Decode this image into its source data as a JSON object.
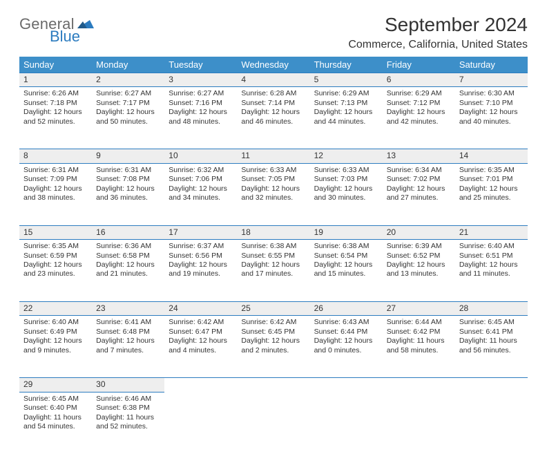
{
  "logo": {
    "general": "General",
    "blue": "Blue"
  },
  "header": {
    "month_title": "September 2024",
    "location": "Commerce, California, United States"
  },
  "colors": {
    "header_bg": "#3d8fc9",
    "header_text": "#ffffff",
    "daynum_bg": "#eeeeee",
    "rule": "#2b7bbf",
    "logo_gray": "#6b6b6b",
    "logo_blue": "#2b7bbf",
    "body_text": "#333333",
    "page_bg": "#ffffff"
  },
  "weekdays": [
    "Sunday",
    "Monday",
    "Tuesday",
    "Wednesday",
    "Thursday",
    "Friday",
    "Saturday"
  ],
  "weeks": [
    [
      {
        "day": "1",
        "sunrise": "Sunrise: 6:26 AM",
        "sunset": "Sunset: 7:18 PM",
        "daylight": "Daylight: 12 hours and 52 minutes."
      },
      {
        "day": "2",
        "sunrise": "Sunrise: 6:27 AM",
        "sunset": "Sunset: 7:17 PM",
        "daylight": "Daylight: 12 hours and 50 minutes."
      },
      {
        "day": "3",
        "sunrise": "Sunrise: 6:27 AM",
        "sunset": "Sunset: 7:16 PM",
        "daylight": "Daylight: 12 hours and 48 minutes."
      },
      {
        "day": "4",
        "sunrise": "Sunrise: 6:28 AM",
        "sunset": "Sunset: 7:14 PM",
        "daylight": "Daylight: 12 hours and 46 minutes."
      },
      {
        "day": "5",
        "sunrise": "Sunrise: 6:29 AM",
        "sunset": "Sunset: 7:13 PM",
        "daylight": "Daylight: 12 hours and 44 minutes."
      },
      {
        "day": "6",
        "sunrise": "Sunrise: 6:29 AM",
        "sunset": "Sunset: 7:12 PM",
        "daylight": "Daylight: 12 hours and 42 minutes."
      },
      {
        "day": "7",
        "sunrise": "Sunrise: 6:30 AM",
        "sunset": "Sunset: 7:10 PM",
        "daylight": "Daylight: 12 hours and 40 minutes."
      }
    ],
    [
      {
        "day": "8",
        "sunrise": "Sunrise: 6:31 AM",
        "sunset": "Sunset: 7:09 PM",
        "daylight": "Daylight: 12 hours and 38 minutes."
      },
      {
        "day": "9",
        "sunrise": "Sunrise: 6:31 AM",
        "sunset": "Sunset: 7:08 PM",
        "daylight": "Daylight: 12 hours and 36 minutes."
      },
      {
        "day": "10",
        "sunrise": "Sunrise: 6:32 AM",
        "sunset": "Sunset: 7:06 PM",
        "daylight": "Daylight: 12 hours and 34 minutes."
      },
      {
        "day": "11",
        "sunrise": "Sunrise: 6:33 AM",
        "sunset": "Sunset: 7:05 PM",
        "daylight": "Daylight: 12 hours and 32 minutes."
      },
      {
        "day": "12",
        "sunrise": "Sunrise: 6:33 AM",
        "sunset": "Sunset: 7:03 PM",
        "daylight": "Daylight: 12 hours and 30 minutes."
      },
      {
        "day": "13",
        "sunrise": "Sunrise: 6:34 AM",
        "sunset": "Sunset: 7:02 PM",
        "daylight": "Daylight: 12 hours and 27 minutes."
      },
      {
        "day": "14",
        "sunrise": "Sunrise: 6:35 AM",
        "sunset": "Sunset: 7:01 PM",
        "daylight": "Daylight: 12 hours and 25 minutes."
      }
    ],
    [
      {
        "day": "15",
        "sunrise": "Sunrise: 6:35 AM",
        "sunset": "Sunset: 6:59 PM",
        "daylight": "Daylight: 12 hours and 23 minutes."
      },
      {
        "day": "16",
        "sunrise": "Sunrise: 6:36 AM",
        "sunset": "Sunset: 6:58 PM",
        "daylight": "Daylight: 12 hours and 21 minutes."
      },
      {
        "day": "17",
        "sunrise": "Sunrise: 6:37 AM",
        "sunset": "Sunset: 6:56 PM",
        "daylight": "Daylight: 12 hours and 19 minutes."
      },
      {
        "day": "18",
        "sunrise": "Sunrise: 6:38 AM",
        "sunset": "Sunset: 6:55 PM",
        "daylight": "Daylight: 12 hours and 17 minutes."
      },
      {
        "day": "19",
        "sunrise": "Sunrise: 6:38 AM",
        "sunset": "Sunset: 6:54 PM",
        "daylight": "Daylight: 12 hours and 15 minutes."
      },
      {
        "day": "20",
        "sunrise": "Sunrise: 6:39 AM",
        "sunset": "Sunset: 6:52 PM",
        "daylight": "Daylight: 12 hours and 13 minutes."
      },
      {
        "day": "21",
        "sunrise": "Sunrise: 6:40 AM",
        "sunset": "Sunset: 6:51 PM",
        "daylight": "Daylight: 12 hours and 11 minutes."
      }
    ],
    [
      {
        "day": "22",
        "sunrise": "Sunrise: 6:40 AM",
        "sunset": "Sunset: 6:49 PM",
        "daylight": "Daylight: 12 hours and 9 minutes."
      },
      {
        "day": "23",
        "sunrise": "Sunrise: 6:41 AM",
        "sunset": "Sunset: 6:48 PM",
        "daylight": "Daylight: 12 hours and 7 minutes."
      },
      {
        "day": "24",
        "sunrise": "Sunrise: 6:42 AM",
        "sunset": "Sunset: 6:47 PM",
        "daylight": "Daylight: 12 hours and 4 minutes."
      },
      {
        "day": "25",
        "sunrise": "Sunrise: 6:42 AM",
        "sunset": "Sunset: 6:45 PM",
        "daylight": "Daylight: 12 hours and 2 minutes."
      },
      {
        "day": "26",
        "sunrise": "Sunrise: 6:43 AM",
        "sunset": "Sunset: 6:44 PM",
        "daylight": "Daylight: 12 hours and 0 minutes."
      },
      {
        "day": "27",
        "sunrise": "Sunrise: 6:44 AM",
        "sunset": "Sunset: 6:42 PM",
        "daylight": "Daylight: 11 hours and 58 minutes."
      },
      {
        "day": "28",
        "sunrise": "Sunrise: 6:45 AM",
        "sunset": "Sunset: 6:41 PM",
        "daylight": "Daylight: 11 hours and 56 minutes."
      }
    ],
    [
      {
        "day": "29",
        "sunrise": "Sunrise: 6:45 AM",
        "sunset": "Sunset: 6:40 PM",
        "daylight": "Daylight: 11 hours and 54 minutes."
      },
      {
        "day": "30",
        "sunrise": "Sunrise: 6:46 AM",
        "sunset": "Sunset: 6:38 PM",
        "daylight": "Daylight: 11 hours and 52 minutes."
      },
      null,
      null,
      null,
      null,
      null
    ]
  ]
}
